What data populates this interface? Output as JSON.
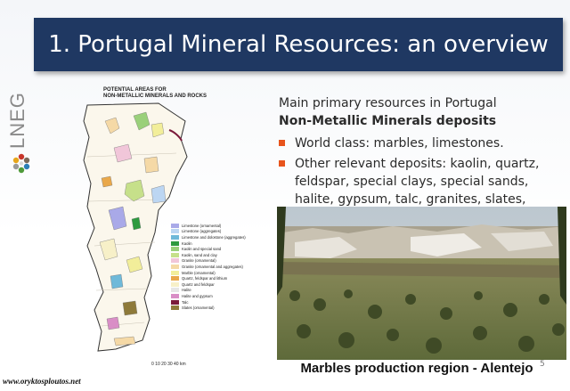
{
  "slide": {
    "title": "1. Portugal Mineral Resources: an overview",
    "page_number": "5"
  },
  "logo": {
    "text": "LNEG"
  },
  "map": {
    "title_line1": "POTENTIAL AREAS FOR",
    "title_line2": "NON-METALLIC MINERALS AND ROCKS",
    "scale_text": "0 10 20 30 40 km",
    "legend": [
      {
        "label": "Limestone (ornamental)",
        "color": "#a9a9e8"
      },
      {
        "label": "Limestone (aggregates)",
        "color": "#bcd6f2"
      },
      {
        "label": "Limestone and dolostone (aggregates)",
        "color": "#6fb9d9"
      },
      {
        "label": "Kaolin",
        "color": "#2e9a3f"
      },
      {
        "label": "Kaolin and special sand",
        "color": "#9ad07a"
      },
      {
        "label": "Kaolin, sand and clay",
        "color": "#c6e08a"
      },
      {
        "label": "Granite (ornamental)",
        "color": "#f1c6d9"
      },
      {
        "label": "Granite (ornamental and aggregates)",
        "color": "#f5d9a6"
      },
      {
        "label": "Marble (ornamental)",
        "color": "#f2ee9a"
      },
      {
        "label": "Quartz, feldspar and lithium",
        "color": "#e9a84a"
      },
      {
        "label": "Quartz and feldspar",
        "color": "#f7f0c8"
      },
      {
        "label": "Halite",
        "color": "#e6e6e6"
      },
      {
        "label": "Halite and gypsum",
        "color": "#d98ec6"
      },
      {
        "label": "Talc",
        "color": "#7a1a3a"
      },
      {
        "label": "Slates (ornamental)",
        "color": "#8e7a3a"
      }
    ]
  },
  "content": {
    "intro": "Main primary resources in Portugal",
    "subhead": "Non-Metallic Minerals deposits",
    "bullets": [
      "World class: marbles, limestones.",
      "Other relevant deposits: kaolin, quartz, feldspar, special clays, special sands, halite, gypsum, talc, granites, slates,"
    ]
  },
  "photo": {
    "caption": "Marbles production region - Alentejo"
  },
  "watermark": "www.oryktosploutos.net",
  "colors": {
    "title_bg": "#1f3862",
    "bullet": "#e8541c"
  }
}
